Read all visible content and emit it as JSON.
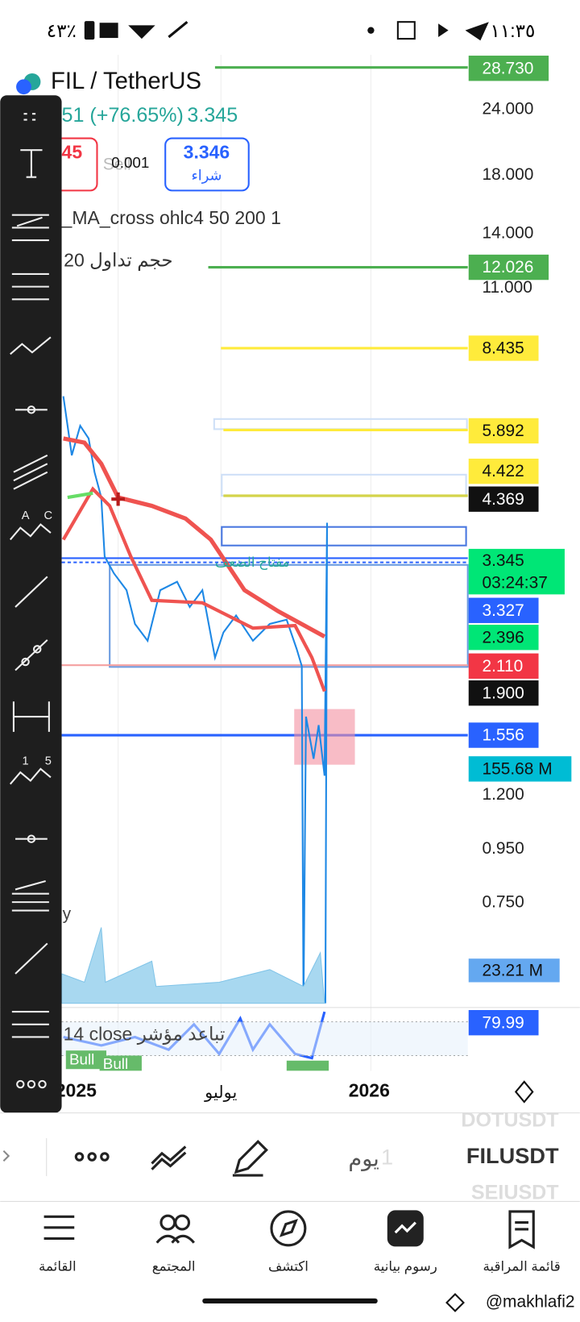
{
  "status_bar": {
    "time": "١١:٣٥",
    "battery": "٤٣٪"
  },
  "header": {
    "symbol": "FIL / TetherUS",
    "change": "51 (+76.65%)",
    "last": "3.345",
    "sell_price": "45",
    "sell": "Sell",
    "spread": "0.001",
    "buy_price": "3.346",
    "buy": "شراء"
  },
  "indicators": [
    "_MA_cross ohlc4 50 200 1",
    "حجم تداول 20"
  ],
  "price_axis": [
    "24.000",
    "18.000",
    "14.000",
    "11.000",
    "1.200",
    "0.950",
    "0.750"
  ],
  "price_labels": [
    "28.730",
    "12.026",
    "8.435",
    "5.892",
    "4.422",
    "4.369",
    "3.345",
    "03:24:37",
    "3.327",
    "2.396",
    "2.110",
    "1.900",
    "1.556",
    "155.68 M",
    "23.21 M",
    "79.99"
  ],
  "chart_texts": {
    "annotation": "مفتاح الضعف",
    "oscillator": "14 close تباعد مؤشر",
    "bull_1": "Bull",
    "bull_2": "Bull",
    "volume": "y"
  },
  "time_axis": [
    "2025",
    "يوليو",
    "2026"
  ],
  "toolbar_labels": [
    "A",
    "C",
    "1",
    "5"
  ],
  "bottom_bar": {
    "interval_unit": "يوم",
    "interval": "1",
    "symbol": "FILUSDT",
    "prev_symbol": "DOTUSDT",
    "next_symbol": "SEIUSDT"
  },
  "nav": [
    "القائمة",
    "المجتمع",
    "اكتشف",
    "رسوم بيانية",
    "قائمة المراقبة"
  ],
  "watermark": "@makhlafi2"
}
